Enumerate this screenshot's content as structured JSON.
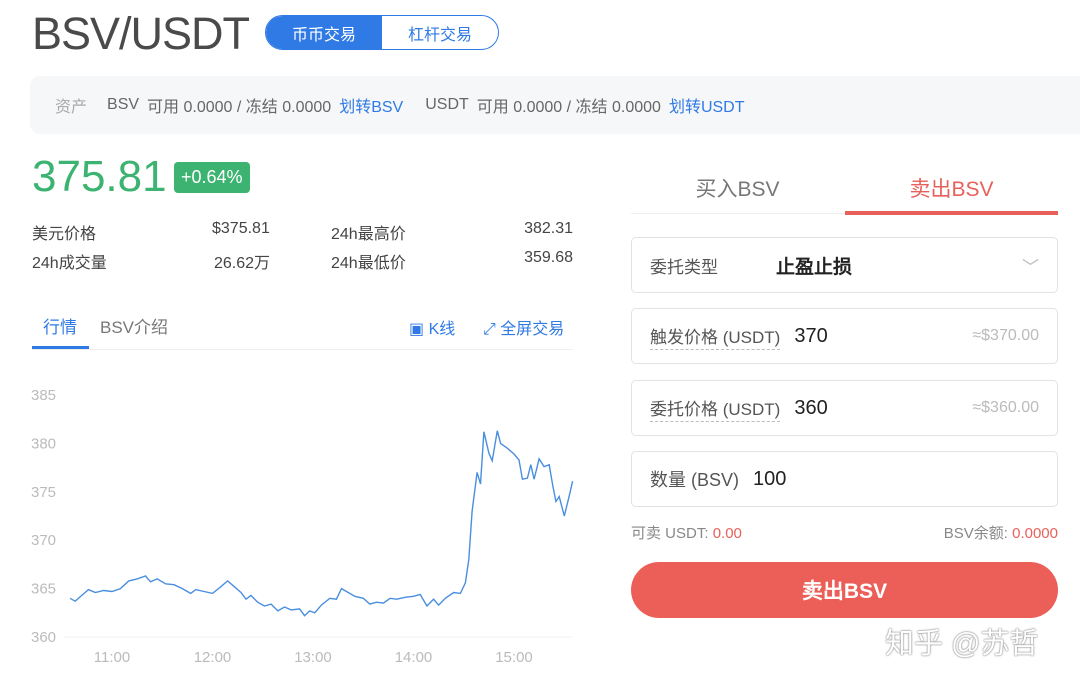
{
  "header": {
    "pair": "BSV/USDT",
    "modes": [
      "币币交易",
      "杠杆交易"
    ],
    "active_mode": 0
  },
  "assets": {
    "label": "资产",
    "bsv": {
      "coin": "BSV",
      "available_label": "可用",
      "available": "0.0000",
      "frozen_label": "冻结",
      "frozen": "0.0000",
      "transfer": "划转BSV"
    },
    "usdt": {
      "coin": "USDT",
      "available_label": "可用",
      "available": "0.0000",
      "frozen_label": "冻结",
      "frozen": "0.0000",
      "transfer": "划转USDT"
    }
  },
  "ticker": {
    "price": "375.81",
    "change": "+0.64%",
    "usd_price_label": "美元价格",
    "usd_price": "$375.81",
    "high_label": "24h最高价",
    "high": "382.31",
    "volume_label": "24h成交量",
    "volume": "26.62万",
    "low_label": "24h最低价",
    "low": "359.68"
  },
  "chart_tabs": {
    "tabs": [
      "行情",
      "BSV介绍"
    ],
    "active": 0,
    "kline": "K线",
    "fullscreen": "全屏交易"
  },
  "chart_data": {
    "type": "line",
    "title": "",
    "xlabel": "",
    "ylabel": "",
    "ylim": [
      360,
      385
    ],
    "yticks": [
      "385",
      "380",
      "375",
      "370",
      "365",
      "360"
    ],
    "xticks": [
      "11:00",
      "12:00",
      "13:00",
      "14:00",
      "15:00"
    ],
    "xlim": [
      "10:31",
      "15:36"
    ],
    "grid": false,
    "color": "#4a8ee0",
    "points": [
      [
        "10:35",
        364.0
      ],
      [
        "10:38",
        363.7
      ],
      [
        "10:42",
        364.3
      ],
      [
        "10:46",
        364.9
      ],
      [
        "10:50",
        364.6
      ],
      [
        "10:55",
        364.8
      ],
      [
        "11:00",
        364.7
      ],
      [
        "11:05",
        365.0
      ],
      [
        "11:10",
        365.8
      ],
      [
        "11:15",
        366.0
      ],
      [
        "11:20",
        366.3
      ],
      [
        "11:23",
        365.7
      ],
      [
        "11:27",
        366.0
      ],
      [
        "11:32",
        365.5
      ],
      [
        "11:37",
        365.4
      ],
      [
        "11:42",
        365.0
      ],
      [
        "11:47",
        364.5
      ],
      [
        "11:50",
        364.9
      ],
      [
        "11:55",
        364.7
      ],
      [
        "12:00",
        364.5
      ],
      [
        "12:05",
        365.2
      ],
      [
        "12:09",
        365.8
      ],
      [
        "12:13",
        365.2
      ],
      [
        "12:17",
        364.6
      ],
      [
        "12:20",
        363.9
      ],
      [
        "12:23",
        364.3
      ],
      [
        "12:27",
        363.6
      ],
      [
        "12:31",
        363.2
      ],
      [
        "12:35",
        363.4
      ],
      [
        "12:39",
        362.7
      ],
      [
        "12:43",
        363.1
      ],
      [
        "12:47",
        362.8
      ],
      [
        "12:52",
        362.9
      ],
      [
        "12:55",
        362.2
      ],
      [
        "12:58",
        362.7
      ],
      [
        "13:01",
        362.5
      ],
      [
        "13:05",
        363.3
      ],
      [
        "13:10",
        364.0
      ],
      [
        "13:14",
        363.9
      ],
      [
        "13:17",
        365.0
      ],
      [
        "13:21",
        364.6
      ],
      [
        "13:25",
        364.2
      ],
      [
        "13:30",
        364.0
      ],
      [
        "13:34",
        363.4
      ],
      [
        "13:38",
        363.6
      ],
      [
        "13:42",
        363.5
      ],
      [
        "13:46",
        364.0
      ],
      [
        "13:50",
        363.9
      ],
      [
        "13:55",
        364.1
      ],
      [
        "14:00",
        364.2
      ],
      [
        "14:04",
        364.4
      ],
      [
        "14:08",
        363.2
      ],
      [
        "14:12",
        363.9
      ],
      [
        "14:15",
        363.3
      ],
      [
        "14:19",
        364.0
      ],
      [
        "14:24",
        364.6
      ],
      [
        "14:28",
        364.5
      ],
      [
        "14:31",
        365.6
      ],
      [
        "14:33",
        368.0
      ],
      [
        "14:35",
        373.0
      ],
      [
        "14:38",
        377.0
      ],
      [
        "14:40",
        375.8
      ],
      [
        "14:42",
        381.2
      ],
      [
        "14:45",
        379.0
      ],
      [
        "14:47",
        378.2
      ],
      [
        "14:50",
        381.3
      ],
      [
        "14:52",
        380.0
      ],
      [
        "14:56",
        379.5
      ],
      [
        "15:00",
        378.9
      ],
      [
        "15:03",
        378.3
      ],
      [
        "15:05",
        376.3
      ],
      [
        "15:08",
        376.4
      ],
      [
        "15:10",
        377.8
      ],
      [
        "15:12",
        376.3
      ],
      [
        "15:15",
        378.4
      ],
      [
        "15:18",
        377.6
      ],
      [
        "15:21",
        377.8
      ],
      [
        "15:23",
        375.8
      ],
      [
        "15:25",
        374.0
      ],
      [
        "15:27",
        374.5
      ],
      [
        "15:30",
        372.5
      ],
      [
        "15:33",
        374.6
      ],
      [
        "15:35",
        376.1
      ]
    ]
  },
  "order": {
    "tabs": [
      "买入BSV",
      "卖出BSV"
    ],
    "active": 1,
    "type_label": "委托类型",
    "type_value": "止盈止损",
    "trigger_label": "触发价格 (USDT)",
    "trigger_value": "370",
    "trigger_hint": "≈$370.00",
    "limit_label": "委托价格 (USDT)",
    "limit_value": "360",
    "limit_hint": "≈$360.00",
    "amount_label": "数量 (BSV)",
    "amount_value": "100",
    "sellable_label": "可卖 USDT:",
    "sellable": "0.00",
    "balance_label": "BSV余额:",
    "balance": "0.0000",
    "submit": "卖出BSV"
  },
  "watermark": "知乎 @苏哲",
  "colors": {
    "accent": "#2f7ae5",
    "up": "#3cb371",
    "sell": "#ec5f58"
  }
}
